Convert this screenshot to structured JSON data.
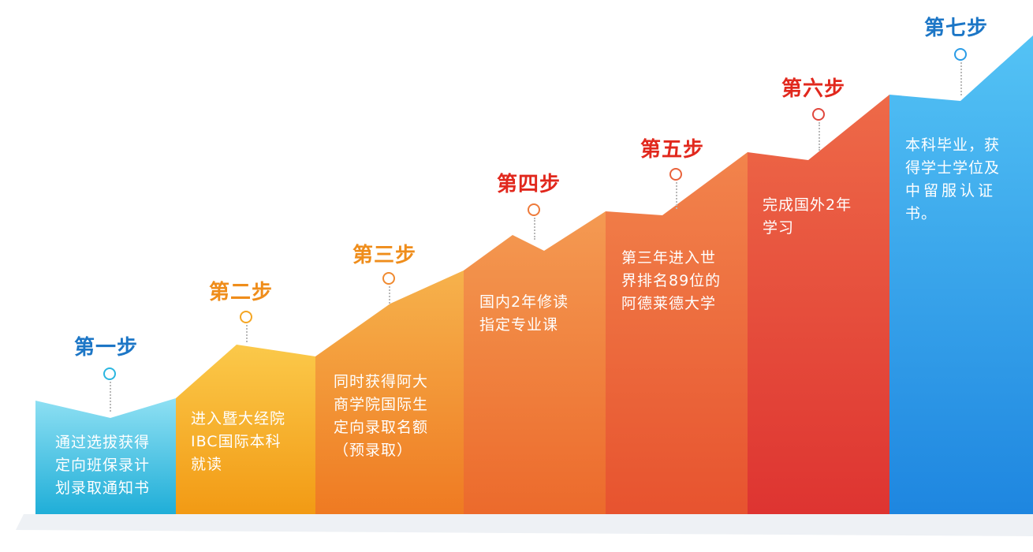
{
  "colors": {
    "step1": "#2bb6e0",
    "step2": "#f5a623",
    "step3": "#f08a30",
    "step4": "#ee7a3a",
    "step5": "#e9633b",
    "step6": "#e0473d",
    "step7": "#2a9ce6",
    "title_blue": "#1c76c6",
    "title_orange": "#ef8d1b",
    "title_red": "#e1281d"
  },
  "steps": [
    {
      "title": "第一步",
      "lines": [
        "通过选拔获得",
        "定向班保录计",
        "划录取通知书"
      ]
    },
    {
      "title": "第二步",
      "lines": [
        "进入暨大经院",
        "IBC国际本科",
        "就读"
      ]
    },
    {
      "title": "第三步",
      "lines": [
        "同时获得阿大",
        "商学院国际生",
        "定向录取名额",
        "（预录取）"
      ]
    },
    {
      "title": "第四步",
      "lines": [
        "国内2年修读",
        "指定专业课"
      ]
    },
    {
      "title": "第五步",
      "lines": [
        "第三年进入世",
        "界排名89位的",
        "阿德莱德大学"
      ]
    },
    {
      "title": "第六步",
      "lines": [
        "完成国外2年",
        "学习"
      ]
    },
    {
      "title": "第七步",
      "lines": [
        "本科毕业，获",
        "得学士学位及",
        "中留服认证",
        "书。"
      ]
    }
  ]
}
